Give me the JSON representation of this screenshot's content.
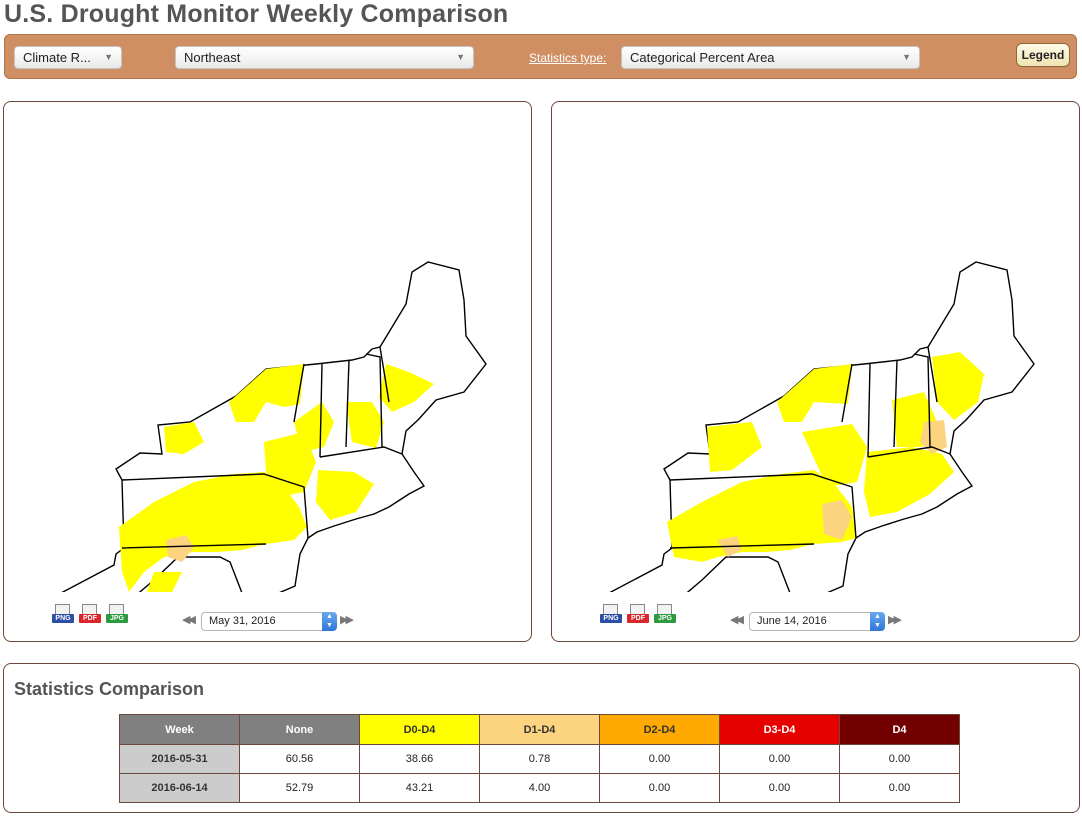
{
  "page": {
    "title": "U.S. Drought Monitor Weekly Comparison"
  },
  "toolbar": {
    "region_type": "Climate R...",
    "region": "Northeast",
    "stats_link": "Statistics type",
    "stats_colon": ":",
    "stats_type": "Categorical Percent Area",
    "legend_label": "Legend"
  },
  "maps": {
    "left": {
      "date": "May 31, 2016"
    },
    "right": {
      "date": "June 14, 2016"
    },
    "export": {
      "png": "PNG",
      "pdf": "PDF",
      "jpg": "JPG"
    }
  },
  "colors": {
    "none": "#ffffff",
    "d0": "#ffff00",
    "d1": "#fcd37f",
    "d2": "#ffaa00",
    "d3": "#e60000",
    "d4": "#730000"
  },
  "stats": {
    "title": "Statistics Comparison",
    "headers": [
      "Week",
      "None",
      "D0-D4",
      "D1-D4",
      "D2-D4",
      "D3-D4",
      "D4"
    ],
    "header_colors": [
      "#808080",
      "#808080",
      "#ffff00",
      "#fcd37f",
      "#ffaa00",
      "#e60000",
      "#730000"
    ],
    "header_text_colors": [
      "#ffffff",
      "#ffffff",
      "#333333",
      "#333333",
      "#333333",
      "#ffffff",
      "#ffffff"
    ],
    "rows": [
      [
        "2016-05-31",
        "60.56",
        "38.66",
        "0.78",
        "0.00",
        "0.00",
        "0.00"
      ],
      [
        "2016-06-14",
        "52.79",
        "43.21",
        "4.00",
        "0.00",
        "0.00",
        "0.00"
      ]
    ]
  }
}
